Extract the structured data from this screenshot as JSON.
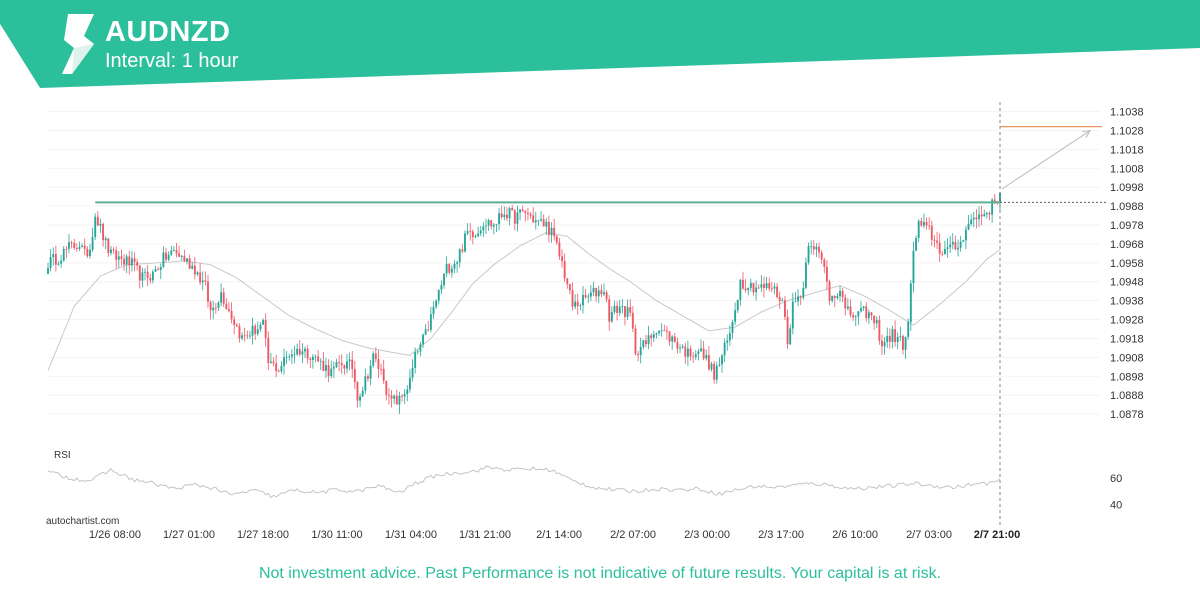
{
  "header": {
    "symbol": "AUDNZD",
    "interval": "Interval: 1 hour"
  },
  "watermark": "autochartist.com",
  "disclaimer": "Not investment advice. Past Performance is not indicative of future results. Your capital is at risk.",
  "colors": {
    "brand": "#2bbf9c",
    "bullish": "#26a69a",
    "bearish": "#ef5865",
    "resistance": "#5fae92",
    "target": "#e58a4e",
    "ma": "#c8c8c8"
  },
  "chart_data": {
    "type": "candlestick",
    "title": "AUDNZD",
    "ylim": [
      1.0868,
      1.1042
    ],
    "y_ticks": [
      "1.1038",
      "1.1028",
      "1.1018",
      "1.1008",
      "1.0998",
      "1.0988",
      "1.0978",
      "1.0968",
      "1.0958",
      "1.0948",
      "1.0938",
      "1.0928",
      "1.0918",
      "1.0908",
      "1.0898",
      "1.0888",
      "1.0878"
    ],
    "x_ticks": [
      "1/26 08:00",
      "1/27 01:00",
      "1/27 18:00",
      "1/30 11:00",
      "1/31 04:00",
      "1/31 21:00",
      "2/1 14:00",
      "2/2 07:00",
      "2/3 00:00",
      "2/3 17:00",
      "2/6 10:00",
      "2/7 03:00",
      "2/7 21:00"
    ],
    "highlight_tick": "2/7 21:00",
    "resistance_level": 1.099,
    "target_level": 1.103,
    "close_anchors": [
      [
        0,
        1.0958
      ],
      [
        4,
        1.0961
      ],
      [
        8,
        1.0966
      ],
      [
        12,
        1.0968
      ],
      [
        14,
        1.0962
      ],
      [
        16,
        1.0966
      ],
      [
        18,
        1.0984
      ],
      [
        20,
        1.0976
      ],
      [
        22,
        1.0968
      ],
      [
        24,
        1.0962
      ],
      [
        28,
        1.096
      ],
      [
        32,
        1.0957
      ],
      [
        36,
        1.095
      ],
      [
        40,
        1.0952
      ],
      [
        44,
        1.096
      ],
      [
        48,
        1.0964
      ],
      [
        52,
        1.096
      ],
      [
        56,
        1.0955
      ],
      [
        60,
        1.0945
      ],
      [
        62,
        1.0932
      ],
      [
        66,
        1.0942
      ],
      [
        70,
        1.093
      ],
      [
        74,
        1.0918
      ],
      [
        78,
        1.0922
      ],
      [
        82,
        1.0925
      ],
      [
        84,
        1.0905
      ],
      [
        88,
        1.0902
      ],
      [
        92,
        1.091
      ],
      [
        96,
        1.0912
      ],
      [
        100,
        1.091
      ],
      [
        104,
        1.0905
      ],
      [
        108,
        1.09
      ],
      [
        112,
        1.0905
      ],
      [
        116,
        1.0903
      ],
      [
        118,
        1.0888
      ],
      [
        120,
        1.0892
      ],
      [
        124,
        1.0908
      ],
      [
        128,
        1.0898
      ],
      [
        130,
        1.0885
      ],
      [
        134,
        1.0885
      ],
      [
        138,
        1.0895
      ],
      [
        140,
        1.0908
      ],
      [
        144,
        1.092
      ],
      [
        148,
        1.0938
      ],
      [
        152,
        1.0955
      ],
      [
        156,
        1.096
      ],
      [
        160,
        1.0974
      ],
      [
        164,
        1.0975
      ],
      [
        166,
        1.098
      ],
      [
        170,
        1.0978
      ],
      [
        174,
        1.0985
      ],
      [
        178,
        1.0982
      ],
      [
        182,
        1.0985
      ],
      [
        186,
        1.098
      ],
      [
        190,
        1.0978
      ],
      [
        192,
        1.0974
      ],
      [
        196,
        1.0958
      ],
      [
        200,
        1.0935
      ],
      [
        204,
        1.0938
      ],
      [
        208,
        1.0942
      ],
      [
        212,
        1.0944
      ],
      [
        214,
        1.093
      ],
      [
        218,
        1.0935
      ],
      [
        222,
        1.093
      ],
      [
        224,
        1.0912
      ],
      [
        228,
        1.0915
      ],
      [
        232,
        1.0924
      ],
      [
        236,
        1.092
      ],
      [
        240,
        1.0915
      ],
      [
        244,
        1.091
      ],
      [
        248,
        1.0912
      ],
      [
        252,
        1.0905
      ],
      [
        254,
        1.0898
      ],
      [
        256,
        1.0905
      ],
      [
        260,
        1.092
      ],
      [
        262,
        1.0935
      ],
      [
        264,
        1.0948
      ],
      [
        268,
        1.0946
      ],
      [
        272,
        1.0945
      ],
      [
        276,
        1.0945
      ],
      [
        280,
        1.0938
      ],
      [
        282,
        1.0918
      ],
      [
        284,
        1.0935
      ],
      [
        288,
        1.0945
      ],
      [
        290,
        1.097
      ],
      [
        292,
        1.0968
      ],
      [
        296,
        1.0955
      ],
      [
        298,
        1.094
      ],
      [
        300,
        1.0942
      ],
      [
        302,
        1.0945
      ],
      [
        304,
        1.0932
      ],
      [
        308,
        1.093
      ],
      [
        312,
        1.0932
      ],
      [
        316,
        1.0925
      ],
      [
        318,
        1.0915
      ],
      [
        322,
        1.092
      ],
      [
        326,
        1.0915
      ],
      [
        328,
        1.0925
      ],
      [
        330,
        1.0965
      ],
      [
        332,
        1.0978
      ],
      [
        336,
        1.0975
      ],
      [
        340,
        1.0965
      ],
      [
        344,
        1.0965
      ],
      [
        348,
        1.0968
      ],
      [
        350,
        1.0978
      ],
      [
        354,
        1.0982
      ],
      [
        358,
        1.0985
      ],
      [
        361,
        1.099
      ],
      [
        363,
        1.0995
      ]
    ],
    "ma_anchors": [
      [
        0,
        1.0901
      ],
      [
        10,
        1.0935
      ],
      [
        20,
        1.0951
      ],
      [
        30,
        1.0957
      ],
      [
        42,
        1.0958
      ],
      [
        52,
        1.0959
      ],
      [
        62,
        1.0957
      ],
      [
        72,
        1.095
      ],
      [
        82,
        1.094
      ],
      [
        92,
        1.093
      ],
      [
        102,
        1.0923
      ],
      [
        112,
        1.0917
      ],
      [
        122,
        1.0913
      ],
      [
        130,
        1.0911
      ],
      [
        138,
        1.0909
      ],
      [
        146,
        1.0918
      ],
      [
        154,
        1.0932
      ],
      [
        162,
        1.0947
      ],
      [
        170,
        1.0957
      ],
      [
        180,
        1.0967
      ],
      [
        190,
        1.0974
      ],
      [
        198,
        1.0972
      ],
      [
        206,
        1.0963
      ],
      [
        214,
        1.0955
      ],
      [
        222,
        1.0948
      ],
      [
        232,
        1.0938
      ],
      [
        242,
        1.093
      ],
      [
        252,
        1.0922
      ],
      [
        262,
        1.0924
      ],
      [
        272,
        1.0932
      ],
      [
        282,
        1.0938
      ],
      [
        292,
        1.0942
      ],
      [
        302,
        1.0946
      ],
      [
        312,
        1.094
      ],
      [
        322,
        1.0932
      ],
      [
        330,
        1.0925
      ],
      [
        340,
        1.0936
      ],
      [
        350,
        1.0948
      ],
      [
        358,
        1.096
      ],
      [
        363,
        1.0965
      ]
    ],
    "rsi": {
      "label": "RSI",
      "ticks": [
        "60",
        "40"
      ],
      "ylim": [
        30,
        75
      ],
      "anchors": [
        [
          0,
          65
        ],
        [
          8,
          60
        ],
        [
          16,
          58
        ],
        [
          24,
          66
        ],
        [
          32,
          59
        ],
        [
          40,
          56
        ],
        [
          48,
          52
        ],
        [
          56,
          55
        ],
        [
          64,
          52
        ],
        [
          70,
          47
        ],
        [
          78,
          51
        ],
        [
          86,
          46
        ],
        [
          94,
          51
        ],
        [
          102,
          49
        ],
        [
          110,
          51
        ],
        [
          118,
          50
        ],
        [
          126,
          54
        ],
        [
          134,
          49
        ],
        [
          140,
          56
        ],
        [
          148,
          62
        ],
        [
          156,
          64
        ],
        [
          162,
          65
        ],
        [
          168,
          68
        ],
        [
          176,
          66
        ],
        [
          184,
          67
        ],
        [
          192,
          66
        ],
        [
          200,
          58
        ],
        [
          208,
          53
        ],
        [
          216,
          51
        ],
        [
          224,
          50
        ],
        [
          232,
          52
        ],
        [
          240,
          51
        ],
        [
          248,
          52
        ],
        [
          256,
          48
        ],
        [
          262,
          51
        ],
        [
          270,
          54
        ],
        [
          278,
          53
        ],
        [
          286,
          55
        ],
        [
          292,
          56
        ],
        [
          300,
          54
        ],
        [
          306,
          52
        ],
        [
          314,
          53
        ],
        [
          322,
          54
        ],
        [
          330,
          56
        ],
        [
          338,
          54
        ],
        [
          346,
          53
        ],
        [
          352,
          55
        ],
        [
          358,
          56
        ],
        [
          363,
          58
        ]
      ]
    }
  }
}
